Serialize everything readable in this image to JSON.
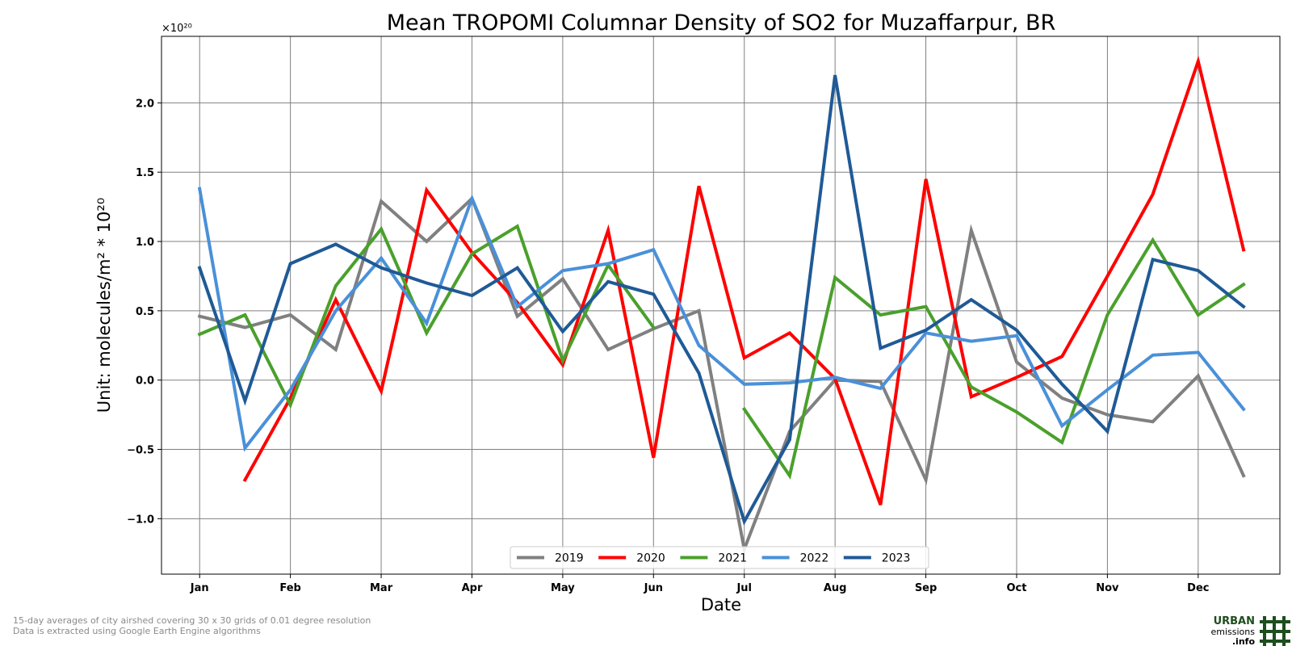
{
  "chart_data": {
    "type": "line",
    "title": "Mean TROPOMI Columnar Density of SO2 for Muzaffarpur, BR",
    "xlabel": "Date",
    "ylabel": "Unit: molecules/m² * 10²⁰",
    "y_multiplier": "×10²⁰",
    "x_ticks": [
      "Jan",
      "Feb",
      "Mar",
      "Apr",
      "May",
      "Jun",
      "Jul",
      "Aug",
      "Sep",
      "Oct",
      "Nov",
      "Dec"
    ],
    "x_range": [
      -0.42,
      11.9
    ],
    "y_ticks": [
      -1.0,
      -0.5,
      0.0,
      0.5,
      1.0,
      1.5,
      2.0
    ],
    "y_tick_labels": [
      "−1.0",
      "−0.5",
      "0.0",
      "0.5",
      "1.0",
      "1.5",
      "2.0"
    ],
    "ylim": [
      -1.4,
      2.48
    ],
    "grid": true,
    "legend_position": "bottom-center",
    "x": [
      0,
      0.5,
      1,
      1.5,
      2,
      2.5,
      3,
      3.5,
      4,
      4.5,
      5,
      5.5,
      6,
      6.5,
      7,
      7.5,
      8,
      8.5,
      9,
      9.5,
      10,
      10.5,
      11,
      11.5
    ],
    "series": [
      {
        "name": "2019",
        "color": "#808080",
        "values": [
          0.46,
          0.38,
          0.47,
          0.22,
          1.29,
          1.0,
          1.31,
          0.46,
          0.73,
          0.22,
          0.37,
          0.5,
          -1.22,
          -0.37,
          0.0,
          -0.01,
          -0.72,
          1.08,
          0.13,
          -0.13,
          -0.25,
          -0.3,
          0.03,
          -0.69
        ]
      },
      {
        "name": "2020",
        "color": "#ff0000",
        "values": [
          null,
          -0.72,
          -0.13,
          0.58,
          -0.08,
          1.37,
          0.92,
          0.56,
          0.11,
          1.08,
          -0.56,
          1.4,
          0.16,
          0.34,
          0.01,
          -0.9,
          1.45,
          -0.12,
          0.02,
          0.17,
          0.75,
          1.34,
          2.3,
          0.94
        ]
      },
      {
        "name": "2021",
        "color": "#4aa02c",
        "values": [
          0.33,
          0.47,
          -0.18,
          0.68,
          1.09,
          0.34,
          0.91,
          1.11,
          0.14,
          0.83,
          0.38,
          null,
          -0.21,
          -0.69,
          0.74,
          0.47,
          0.53,
          -0.05,
          -0.23,
          -0.45,
          0.47,
          1.01,
          0.47,
          0.69
        ]
      },
      {
        "name": "2022",
        "color": "#4a90d9",
        "values": [
          1.38,
          -0.49,
          -0.07,
          0.5,
          0.88,
          0.41,
          1.31,
          0.53,
          0.79,
          0.84,
          0.94,
          0.25,
          -0.03,
          -0.02,
          0.02,
          -0.06,
          0.34,
          0.28,
          0.32,
          -0.33,
          -0.07,
          0.18,
          0.2,
          -0.21
        ]
      },
      {
        "name": "2023",
        "color": "#1f5a96",
        "values": [
          0.81,
          -0.15,
          0.84,
          0.98,
          0.81,
          0.7,
          0.61,
          0.81,
          0.35,
          0.71,
          0.62,
          0.05,
          -1.02,
          -0.43,
          2.2,
          0.23,
          0.36,
          0.58,
          0.36,
          -0.03,
          -0.37,
          0.87,
          0.79,
          0.53
        ]
      }
    ]
  },
  "footer": {
    "note_line1": "15-day averages of city airshed covering 30 x 30 grids of 0.01 degree resolution",
    "note_line2": "Data is extracted using Google Earth Engine algorithms"
  },
  "logo": {
    "line1": "URBAN",
    "line2": "emissions",
    "line3": ".info"
  }
}
